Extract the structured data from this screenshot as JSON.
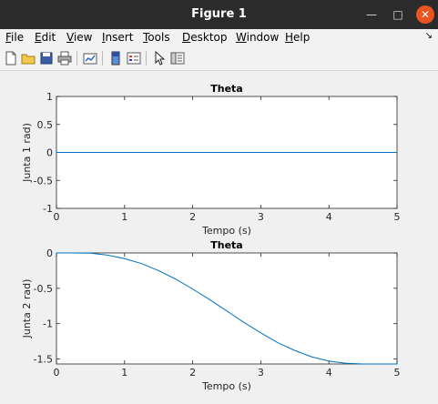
{
  "window": {
    "title": "Figure 1"
  },
  "menu": {
    "items": [
      {
        "accel": "F",
        "rest": "ile"
      },
      {
        "accel": "E",
        "rest": "dit"
      },
      {
        "accel": "V",
        "rest": "iew"
      },
      {
        "accel": "I",
        "rest": "nsert"
      },
      {
        "accel": "T",
        "rest": "ools"
      },
      {
        "accel": "D",
        "rest": "esktop"
      },
      {
        "accel": "W",
        "rest": "indow"
      },
      {
        "accel": "H",
        "rest": "elp"
      }
    ]
  },
  "toolbar": {
    "icons": [
      "new-figure-icon",
      "open-file-icon",
      "save-icon",
      "print-icon",
      "link-plot-icon",
      "colorbar-icon",
      "legend-icon",
      "edit-plot-icon",
      "property-inspector-icon"
    ]
  },
  "colors": {
    "line": "#0072bd",
    "axes_bg": "#ffffff",
    "figure_bg": "#f0f0f0"
  },
  "chart_data": [
    {
      "type": "line",
      "title": "Theta",
      "xlabel": "Tempo (s)",
      "ylabel": "Junta 1 rad)",
      "xlim": [
        0,
        5
      ],
      "ylim": [
        -1,
        1
      ],
      "xticks": [
        "0",
        "1",
        "2",
        "3",
        "4",
        "5"
      ],
      "yticks": [
        "-1",
        "-0.5",
        "0",
        "0.5",
        "1"
      ],
      "x": [
        0,
        0.5,
        1,
        1.5,
        2,
        2.5,
        3,
        3.5,
        4,
        4.5,
        5
      ],
      "y": [
        0,
        0,
        0,
        0,
        0,
        0,
        0,
        0,
        0,
        0,
        0
      ]
    },
    {
      "type": "line",
      "title": "Theta",
      "xlabel": "Tempo (s)",
      "ylabel": "Junta 2 rad)",
      "xlim": [
        0,
        5
      ],
      "ylim": [
        -1.57,
        0
      ],
      "xticks": [
        "0",
        "1",
        "2",
        "3",
        "4",
        "5"
      ],
      "yticks": [
        "-1.5",
        "-1",
        "-0.5",
        "0"
      ],
      "x": [
        0,
        0.25,
        0.5,
        0.75,
        1,
        1.25,
        1.5,
        1.75,
        2,
        2.25,
        2.5,
        2.75,
        3,
        3.25,
        3.5,
        3.75,
        4,
        4.25,
        4.5,
        4.75,
        5
      ],
      "y": [
        0,
        0,
        -0.003,
        -0.03,
        -0.08,
        -0.15,
        -0.25,
        -0.37,
        -0.51,
        -0.66,
        -0.82,
        -0.98,
        -1.13,
        -1.27,
        -1.38,
        -1.47,
        -1.53,
        -1.56,
        -1.57,
        -1.57,
        -1.57
      ]
    }
  ]
}
